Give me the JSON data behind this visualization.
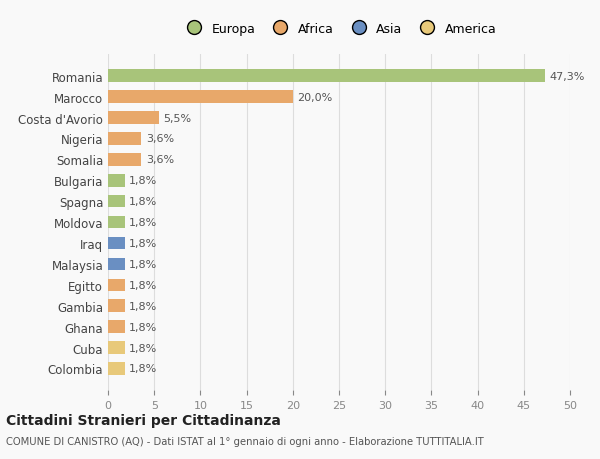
{
  "categories": [
    "Colombia",
    "Cuba",
    "Ghana",
    "Gambia",
    "Egitto",
    "Malaysia",
    "Iraq",
    "Moldova",
    "Spagna",
    "Bulgaria",
    "Somalia",
    "Nigeria",
    "Costa d'Avorio",
    "Marocco",
    "Romania"
  ],
  "values": [
    1.8,
    1.8,
    1.8,
    1.8,
    1.8,
    1.8,
    1.8,
    1.8,
    1.8,
    1.8,
    3.6,
    3.6,
    5.5,
    20.0,
    47.3
  ],
  "colors": [
    "#e8c97a",
    "#e8c97a",
    "#e8a86a",
    "#e8a86a",
    "#e8a86a",
    "#6a8fc2",
    "#6a8fc2",
    "#a8c47a",
    "#a8c47a",
    "#a8c47a",
    "#e8a86a",
    "#e8a86a",
    "#e8a86a",
    "#e8a86a",
    "#a8c47a"
  ],
  "labels": [
    "1,8%",
    "1,8%",
    "1,8%",
    "1,8%",
    "1,8%",
    "1,8%",
    "1,8%",
    "1,8%",
    "1,8%",
    "1,8%",
    "3,6%",
    "3,6%",
    "5,5%",
    "20,0%",
    "47,3%"
  ],
  "legend_labels": [
    "Europa",
    "Africa",
    "Asia",
    "America"
  ],
  "legend_colors": [
    "#a8c47a",
    "#e8a86a",
    "#6a8fc2",
    "#e8c97a"
  ],
  "xlim": [
    0,
    50
  ],
  "xticks": [
    0,
    5,
    10,
    15,
    20,
    25,
    30,
    35,
    40,
    45,
    50
  ],
  "title": "Cittadini Stranieri per Cittadinanza",
  "subtitle": "COMUNE DI CANISTRO (AQ) - Dati ISTAT al 1° gennaio di ogni anno - Elaborazione TUTTITALIA.IT",
  "background_color": "#f9f9f9",
  "grid_color": "#dddddd",
  "bar_height": 0.6
}
